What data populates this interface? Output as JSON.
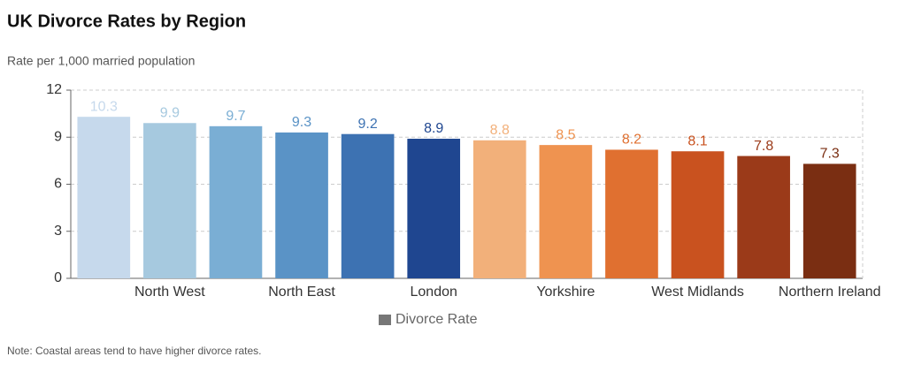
{
  "chart_data": {
    "type": "bar",
    "title": "UK Divorce Rates by Region",
    "subtitle": "Rate per 1,000 married population",
    "note": "Note: Coastal areas tend to have higher divorce rates.",
    "categories": [
      null,
      "North West",
      null,
      "North East",
      null,
      "London",
      null,
      "Yorkshire",
      null,
      "West Midlands",
      null,
      "Northern Ireland"
    ],
    "series": [
      {
        "name": "Divorce Rate",
        "color": "#777777",
        "values": [
          10.3,
          9.9,
          9.7,
          9.3,
          9.2,
          8.9,
          8.8,
          8.5,
          8.2,
          8.1,
          7.8,
          7.3
        ]
      }
    ],
    "colors": [
      "#c6d9ec",
      "#a6c9df",
      "#7aaed4",
      "#5a93c6",
      "#3d72b2",
      "#1f4690",
      "#f2b07a",
      "#ef9350",
      "#e07030",
      "#c9521f",
      "#9b3a19",
      "#7a2e12"
    ],
    "ylim": [
      0,
      12
    ],
    "yticks": [
      0,
      3,
      6,
      9,
      12
    ],
    "grid": true,
    "legend": "bottom"
  }
}
